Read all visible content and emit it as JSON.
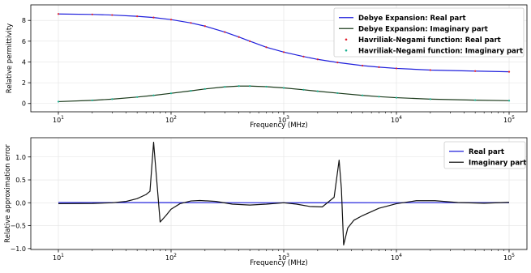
{
  "chart_data": [
    {
      "type": "line",
      "xlabel": "Frequency (MHz)",
      "ylabel": "Relative permittivity",
      "xscale": "log",
      "xlim": [
        10,
        100000
      ],
      "ylim": [
        -0.8,
        9.5
      ],
      "x_ticks": [
        "10",
        "100",
        "1000",
        "10000",
        "100000"
      ],
      "x_tick_labels": [
        "10",
        "10",
        "10",
        "10",
        "10"
      ],
      "x_tick_exponents": [
        "1",
        "2",
        "3",
        "4",
        "5"
      ],
      "y_ticks": [
        0,
        2,
        4,
        6,
        8
      ],
      "y_tick_labels": [
        "0",
        "2",
        "4",
        "6",
        "8"
      ],
      "grid": true,
      "legend_position": "top-right",
      "x": [
        10,
        20,
        30,
        50,
        70,
        100,
        150,
        200,
        300,
        400,
        500,
        700,
        1000,
        1500,
        2000,
        3000,
        5000,
        7000,
        10000,
        20000,
        50000,
        100000
      ],
      "series": [
        {
          "name": "Debye Expansion: Real part",
          "kind": "line",
          "color": "#1f1fdc",
          "values": [
            8.62,
            8.58,
            8.52,
            8.4,
            8.28,
            8.08,
            7.76,
            7.45,
            6.88,
            6.4,
            6.0,
            5.42,
            4.95,
            4.52,
            4.25,
            3.95,
            3.65,
            3.5,
            3.38,
            3.22,
            3.12,
            3.05
          ]
        },
        {
          "name": "Debye Expansion: Imaginary part",
          "kind": "line",
          "color": "#1c3b1c",
          "values": [
            0.18,
            0.3,
            0.42,
            0.62,
            0.78,
            0.98,
            1.22,
            1.4,
            1.6,
            1.68,
            1.68,
            1.62,
            1.5,
            1.32,
            1.18,
            1.0,
            0.78,
            0.66,
            0.56,
            0.42,
            0.32,
            0.27
          ]
        },
        {
          "name": "Havriliak-Negami function: Real part",
          "kind": "dots",
          "color": "#e0202e",
          "values": [
            8.62,
            8.58,
            8.52,
            8.4,
            8.28,
            8.08,
            7.76,
            7.45,
            6.88,
            6.4,
            6.0,
            5.42,
            4.95,
            4.52,
            4.25,
            3.95,
            3.65,
            3.5,
            3.38,
            3.22,
            3.12,
            3.05
          ]
        },
        {
          "name": "Havriliak-Negami function: Imaginary part",
          "kind": "dots",
          "color": "#18b090",
          "values": [
            0.18,
            0.3,
            0.42,
            0.62,
            0.78,
            0.98,
            1.22,
            1.4,
            1.6,
            1.68,
            1.68,
            1.62,
            1.5,
            1.32,
            1.18,
            1.0,
            0.78,
            0.66,
            0.56,
            0.42,
            0.32,
            0.27
          ]
        }
      ]
    },
    {
      "type": "line",
      "xlabel": "Frequency (MHz)",
      "ylabel": "Relative approximation error",
      "xscale": "log",
      "xlim": [
        10,
        100000
      ],
      "ylim": [
        -1.02,
        1.42
      ],
      "x_ticks": [
        "10",
        "100",
        "1000",
        "10000",
        "100000"
      ],
      "x_tick_labels": [
        "10",
        "10",
        "10",
        "10",
        "10"
      ],
      "x_tick_exponents": [
        "1",
        "2",
        "3",
        "4",
        "5"
      ],
      "y_ticks": [
        -1.0,
        -0.5,
        0.0,
        0.5,
        1.0
      ],
      "y_tick_labels": [
        "−1.0",
        "−0.5",
        "0.0",
        "0.5",
        "1.0"
      ],
      "grid": true,
      "legend_position": "top-right",
      "series": [
        {
          "name": "Real part",
          "kind": "line",
          "color": "#1f1fdc",
          "x": [
            10,
            100,
            1000,
            10000,
            100000
          ],
          "values": [
            0.005,
            0.003,
            0.0,
            0.002,
            0.004
          ]
        },
        {
          "name": "Imaginary part",
          "kind": "line",
          "color": "#111111",
          "x": [
            10,
            20,
            30,
            40,
            50,
            60,
            65,
            70,
            74,
            80,
            90,
            100,
            120,
            150,
            180,
            250,
            350,
            500,
            700,
            1000,
            1300,
            1700,
            2200,
            2800,
            3100,
            3250,
            3400,
            3700,
            4200,
            5000,
            7000,
            10000,
            15000,
            22000,
            35000,
            60000,
            100000
          ],
          "values": [
            -0.02,
            -0.015,
            0.0,
            0.03,
            0.09,
            0.18,
            0.25,
            1.32,
            0.6,
            -0.42,
            -0.28,
            -0.14,
            -0.02,
            0.04,
            0.05,
            0.03,
            -0.03,
            -0.05,
            -0.03,
            0.0,
            -0.03,
            -0.08,
            -0.09,
            0.12,
            0.93,
            0.3,
            -0.92,
            -0.55,
            -0.38,
            -0.28,
            -0.12,
            -0.02,
            0.045,
            0.045,
            0.005,
            -0.01,
            0.01
          ]
        }
      ]
    }
  ]
}
